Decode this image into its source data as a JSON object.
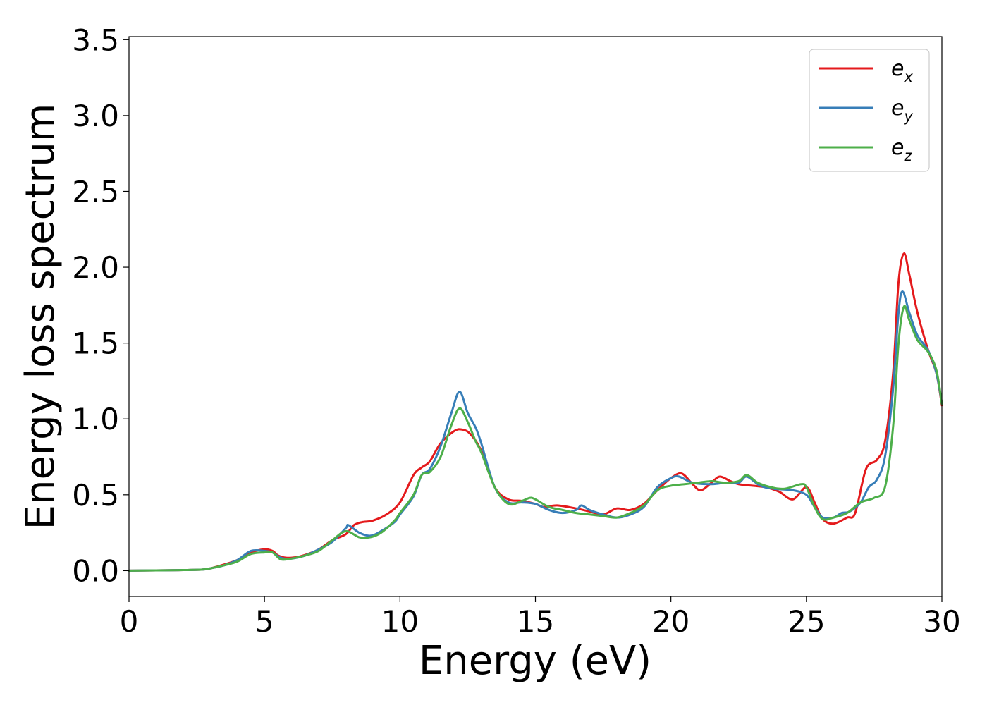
{
  "chart_data": {
    "type": "line",
    "title": "",
    "xlabel": "Energy (eV)",
    "ylabel": "Energy loss spectrum",
    "xlim": [
      0,
      30
    ],
    "ylim": [
      -0.17,
      3.52
    ],
    "xticks": [
      0,
      5,
      10,
      15,
      20,
      25,
      30
    ],
    "xtick_labels": [
      "0",
      "5",
      "10",
      "15",
      "20",
      "25",
      "30"
    ],
    "yticks": [
      0.0,
      0.5,
      1.0,
      1.5,
      2.0,
      2.5,
      3.0,
      3.5
    ],
    "ytick_labels": [
      "0.0",
      "0.5",
      "1.0",
      "1.5",
      "2.0",
      "2.5",
      "3.0",
      "3.5"
    ],
    "grid": false,
    "legend_position": "top-right",
    "series": [
      {
        "name": "e_x",
        "legend_base": "e",
        "legend_sub": "x",
        "color": "#e41a1c",
        "points": [
          [
            0,
            0
          ],
          [
            1,
            0.002
          ],
          [
            2,
            0.004
          ],
          [
            2.7,
            0.007
          ],
          [
            3,
            0.015
          ],
          [
            3.5,
            0.04
          ],
          [
            4,
            0.07
          ],
          [
            4.5,
            0.12
          ],
          [
            5,
            0.14
          ],
          [
            5.3,
            0.13
          ],
          [
            5.5,
            0.1
          ],
          [
            5.8,
            0.085
          ],
          [
            6.2,
            0.09
          ],
          [
            6.6,
            0.11
          ],
          [
            7,
            0.14
          ],
          [
            7.5,
            0.2
          ],
          [
            8,
            0.24
          ],
          [
            8.3,
            0.3
          ],
          [
            8.6,
            0.32
          ],
          [
            9,
            0.33
          ],
          [
            9.5,
            0.37
          ],
          [
            10,
            0.45
          ],
          [
            10.5,
            0.63
          ],
          [
            10.8,
            0.68
          ],
          [
            11.1,
            0.72
          ],
          [
            11.5,
            0.84
          ],
          [
            12,
            0.92
          ],
          [
            12.3,
            0.93
          ],
          [
            12.6,
            0.9
          ],
          [
            13,
            0.79
          ],
          [
            13.5,
            0.55
          ],
          [
            14,
            0.47
          ],
          [
            14.5,
            0.46
          ],
          [
            15,
            0.44
          ],
          [
            15.3,
            0.42
          ],
          [
            15.8,
            0.43
          ],
          [
            16.5,
            0.41
          ],
          [
            17,
            0.39
          ],
          [
            17.5,
            0.37
          ],
          [
            18,
            0.41
          ],
          [
            18.5,
            0.4
          ],
          [
            19,
            0.44
          ],
          [
            19.5,
            0.53
          ],
          [
            20,
            0.61
          ],
          [
            20.4,
            0.64
          ],
          [
            20.8,
            0.57
          ],
          [
            21.1,
            0.53
          ],
          [
            21.5,
            0.58
          ],
          [
            21.8,
            0.62
          ],
          [
            22.2,
            0.59
          ],
          [
            22.5,
            0.57
          ],
          [
            23,
            0.56
          ],
          [
            23.5,
            0.55
          ],
          [
            24,
            0.52
          ],
          [
            24.5,
            0.47
          ],
          [
            25,
            0.55
          ],
          [
            25.3,
            0.45
          ],
          [
            25.6,
            0.34
          ],
          [
            26,
            0.31
          ],
          [
            26.5,
            0.35
          ],
          [
            26.8,
            0.38
          ],
          [
            27.2,
            0.67
          ],
          [
            27.6,
            0.73
          ],
          [
            27.9,
            0.85
          ],
          [
            28.2,
            1.3
          ],
          [
            28.4,
            1.9
          ],
          [
            28.6,
            2.09
          ],
          [
            28.8,
            1.95
          ],
          [
            29.1,
            1.7
          ],
          [
            29.5,
            1.45
          ],
          [
            29.8,
            1.3
          ],
          [
            30,
            1.09
          ]
        ]
      },
      {
        "name": "e_y",
        "legend_base": "e",
        "legend_sub": "y",
        "color": "#377eb8",
        "points": [
          [
            0,
            0
          ],
          [
            1,
            0.002
          ],
          [
            2,
            0.004
          ],
          [
            2.7,
            0.007
          ],
          [
            3,
            0.015
          ],
          [
            3.5,
            0.035
          ],
          [
            4,
            0.07
          ],
          [
            4.5,
            0.13
          ],
          [
            5,
            0.13
          ],
          [
            5.3,
            0.12
          ],
          [
            5.6,
            0.085
          ],
          [
            6,
            0.08
          ],
          [
            6.5,
            0.1
          ],
          [
            7,
            0.14
          ],
          [
            7.5,
            0.19
          ],
          [
            8,
            0.28
          ],
          [
            8.1,
            0.3
          ],
          [
            8.5,
            0.25
          ],
          [
            8.9,
            0.23
          ],
          [
            9.3,
            0.26
          ],
          [
            9.8,
            0.32
          ],
          [
            10,
            0.37
          ],
          [
            10.5,
            0.49
          ],
          [
            10.8,
            0.63
          ],
          [
            11.1,
            0.67
          ],
          [
            11.5,
            0.82
          ],
          [
            11.9,
            1.04
          ],
          [
            12.2,
            1.18
          ],
          [
            12.5,
            1.04
          ],
          [
            12.8,
            0.94
          ],
          [
            13,
            0.84
          ],
          [
            13.5,
            0.55
          ],
          [
            14,
            0.45
          ],
          [
            14.5,
            0.45
          ],
          [
            15,
            0.44
          ],
          [
            15.5,
            0.4
          ],
          [
            16,
            0.38
          ],
          [
            16.5,
            0.4
          ],
          [
            16.7,
            0.43
          ],
          [
            17,
            0.4
          ],
          [
            17.5,
            0.37
          ],
          [
            18,
            0.35
          ],
          [
            18.5,
            0.37
          ],
          [
            19,
            0.42
          ],
          [
            19.5,
            0.55
          ],
          [
            20,
            0.61
          ],
          [
            20.3,
            0.62
          ],
          [
            20.8,
            0.58
          ],
          [
            21.5,
            0.57
          ],
          [
            22,
            0.58
          ],
          [
            22.5,
            0.58
          ],
          [
            22.8,
            0.62
          ],
          [
            23.3,
            0.56
          ],
          [
            23.8,
            0.54
          ],
          [
            24.5,
            0.53
          ],
          [
            25,
            0.5
          ],
          [
            25.3,
            0.42
          ],
          [
            25.6,
            0.35
          ],
          [
            26,
            0.35
          ],
          [
            26.3,
            0.38
          ],
          [
            26.6,
            0.39
          ],
          [
            27,
            0.45
          ],
          [
            27.3,
            0.55
          ],
          [
            27.6,
            0.6
          ],
          [
            27.9,
            0.75
          ],
          [
            28.2,
            1.2
          ],
          [
            28.4,
            1.7
          ],
          [
            28.55,
            1.84
          ],
          [
            28.8,
            1.7
          ],
          [
            29.1,
            1.55
          ],
          [
            29.5,
            1.45
          ],
          [
            29.8,
            1.3
          ],
          [
            30,
            1.1
          ]
        ]
      },
      {
        "name": "e_z",
        "legend_base": "e",
        "legend_sub": "z",
        "color": "#4daf4a",
        "points": [
          [
            0,
            0
          ],
          [
            1,
            0.002
          ],
          [
            2,
            0.004
          ],
          [
            2.7,
            0.007
          ],
          [
            3,
            0.015
          ],
          [
            3.5,
            0.035
          ],
          [
            4,
            0.06
          ],
          [
            4.5,
            0.11
          ],
          [
            5,
            0.12
          ],
          [
            5.3,
            0.12
          ],
          [
            5.6,
            0.075
          ],
          [
            6,
            0.08
          ],
          [
            6.5,
            0.1
          ],
          [
            7,
            0.13
          ],
          [
            7.5,
            0.2
          ],
          [
            8,
            0.26
          ],
          [
            8.5,
            0.22
          ],
          [
            8.9,
            0.22
          ],
          [
            9.3,
            0.25
          ],
          [
            9.8,
            0.33
          ],
          [
            10,
            0.38
          ],
          [
            10.5,
            0.5
          ],
          [
            10.8,
            0.63
          ],
          [
            11.1,
            0.65
          ],
          [
            11.5,
            0.75
          ],
          [
            11.9,
            0.96
          ],
          [
            12.2,
            1.07
          ],
          [
            12.5,
            0.98
          ],
          [
            12.8,
            0.85
          ],
          [
            13,
            0.78
          ],
          [
            13.5,
            0.55
          ],
          [
            14,
            0.44
          ],
          [
            14.5,
            0.46
          ],
          [
            14.8,
            0.48
          ],
          [
            15,
            0.47
          ],
          [
            15.5,
            0.42
          ],
          [
            16,
            0.4
          ],
          [
            16.5,
            0.38
          ],
          [
            17,
            0.37
          ],
          [
            17.5,
            0.36
          ],
          [
            18,
            0.35
          ],
          [
            18.5,
            0.38
          ],
          [
            19,
            0.43
          ],
          [
            19.5,
            0.53
          ],
          [
            20,
            0.56
          ],
          [
            20.5,
            0.57
          ],
          [
            21,
            0.58
          ],
          [
            21.5,
            0.59
          ],
          [
            22,
            0.58
          ],
          [
            22.5,
            0.59
          ],
          [
            22.8,
            0.63
          ],
          [
            23.2,
            0.58
          ],
          [
            23.7,
            0.55
          ],
          [
            24.2,
            0.54
          ],
          [
            24.8,
            0.57
          ],
          [
            25,
            0.55
          ],
          [
            25.3,
            0.42
          ],
          [
            25.6,
            0.34
          ],
          [
            26,
            0.35
          ],
          [
            26.5,
            0.38
          ],
          [
            27,
            0.45
          ],
          [
            27.5,
            0.48
          ],
          [
            27.9,
            0.55
          ],
          [
            28.2,
            0.95
          ],
          [
            28.4,
            1.5
          ],
          [
            28.6,
            1.74
          ],
          [
            28.8,
            1.65
          ],
          [
            29.1,
            1.52
          ],
          [
            29.5,
            1.44
          ],
          [
            29.8,
            1.32
          ],
          [
            30,
            1.1
          ]
        ]
      }
    ]
  }
}
